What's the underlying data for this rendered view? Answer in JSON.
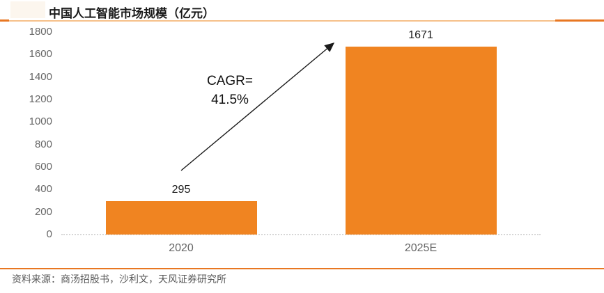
{
  "title": "中国人工智能市场规模（亿元）",
  "annotation": {
    "line1": "CAGR=",
    "line2": "41.5%"
  },
  "source_note": "资料来源：商汤招股书，沙利文，天风证券研究所",
  "chart_data": {
    "type": "bar",
    "title": "中国人工智能市场规模（亿元）",
    "categories": [
      "2020",
      "2025E"
    ],
    "values": [
      295,
      1671
    ],
    "xlabel": "",
    "ylabel": "",
    "ylim": [
      0,
      1800
    ],
    "yticks": [
      0,
      200,
      400,
      600,
      800,
      1000,
      1200,
      1400,
      1600,
      1800
    ],
    "grid": "off",
    "legend": "none",
    "annotation": "CAGR=41.5%",
    "bar_color": "#f08421"
  },
  "colors": {
    "bar": "#f08421",
    "divider_dark": "#e87722",
    "divider_light": "#f6c08a",
    "bottom_divider": "#e87722",
    "axis_line": "#d6d6d6",
    "tick_text": "#666666",
    "value_text": "#1a1a1a",
    "annotation_text": "#111111",
    "source_text": "#595959",
    "title_highlight": "#fcf6ee"
  }
}
